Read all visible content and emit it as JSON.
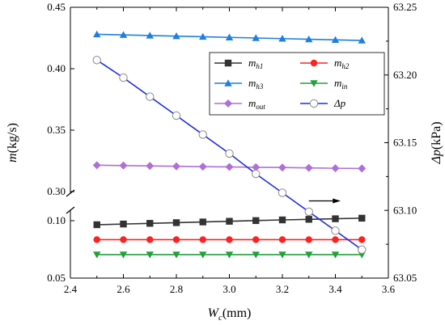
{
  "chart_data": {
    "type": "line",
    "x": [
      2.5,
      2.6,
      2.7,
      2.8,
      2.9,
      3.0,
      3.1,
      3.2,
      3.3,
      3.4,
      3.5
    ],
    "xlim": [
      2.4,
      3.6
    ],
    "x_ticks": [
      "2.4",
      "2.6",
      "2.8",
      "3.0",
      "3.2",
      "3.4",
      "3.6"
    ],
    "xlabel": {
      "base": "W",
      "sub": "c",
      "unit": "(mm)"
    },
    "ylabel_left": {
      "base": "m",
      "unit": "(kg/s)"
    },
    "ylabel_right": {
      "base": "Δp",
      "unit": "(kPa)"
    },
    "y_left_axis": {
      "broken": true,
      "lower_range": [
        0.05,
        0.12
      ],
      "upper_range": [
        0.3,
        0.45
      ],
      "lower_ticks": [
        "0.05",
        "0.10"
      ],
      "upper_ticks": [
        "0.30",
        "0.35",
        "0.40",
        "0.45"
      ]
    },
    "y_right_axis": {
      "range": [
        63.05,
        63.25
      ],
      "ticks": [
        "63.05",
        "63.10",
        "63.15",
        "63.20",
        "63.25"
      ]
    },
    "series": [
      {
        "name_base": "m",
        "name_sub": "h1",
        "axis": "left",
        "color": "#333333",
        "marker": "square",
        "values": [
          0.0965,
          0.0971,
          0.0977,
          0.0983,
          0.0989,
          0.0995,
          0.1001,
          0.1007,
          0.1012,
          0.1017,
          0.1022
        ]
      },
      {
        "name_base": "m",
        "name_sub": "h2",
        "axis": "left",
        "color": "#ff2020",
        "marker": "circle",
        "values": [
          0.0835,
          0.0835,
          0.0835,
          0.0835,
          0.0835,
          0.0835,
          0.0835,
          0.0835,
          0.0835,
          0.0835,
          0.0835
        ]
      },
      {
        "name_base": "m",
        "name_sub": "h3",
        "axis": "left",
        "color": "#1e7fe0",
        "marker": "triangle-up",
        "values": [
          0.428,
          0.4275,
          0.427,
          0.4265,
          0.426,
          0.4255,
          0.425,
          0.4245,
          0.424,
          0.4235,
          0.423
        ]
      },
      {
        "name_base": "m",
        "name_sub": "in",
        "axis": "left",
        "color": "#22a03c",
        "marker": "triangle-down",
        "values": [
          0.0705,
          0.0705,
          0.0705,
          0.0705,
          0.0705,
          0.0705,
          0.0705,
          0.0705,
          0.0705,
          0.0705,
          0.0705
        ]
      },
      {
        "name_base": "m",
        "name_sub": "out",
        "axis": "left",
        "color": "#b06fd6",
        "marker": "diamond",
        "values": [
          0.3215,
          0.3212,
          0.3209,
          0.3206,
          0.3203,
          0.3201,
          0.3198,
          0.3196,
          0.3193,
          0.319,
          0.3188
        ]
      },
      {
        "name_base": "Δp",
        "name_sub": "",
        "axis": "right",
        "color": "#1f2fe0",
        "marker": "open-circle",
        "values": [
          63.211,
          63.198,
          63.184,
          63.17,
          63.156,
          63.142,
          63.127,
          63.113,
          63.099,
          63.085,
          63.071
        ]
      }
    ],
    "annotation": {
      "type": "arrow",
      "direction": "right",
      "meaning": "Δp series refers to right axis"
    },
    "legend": {
      "position": "top-right",
      "columns": 2
    }
  }
}
